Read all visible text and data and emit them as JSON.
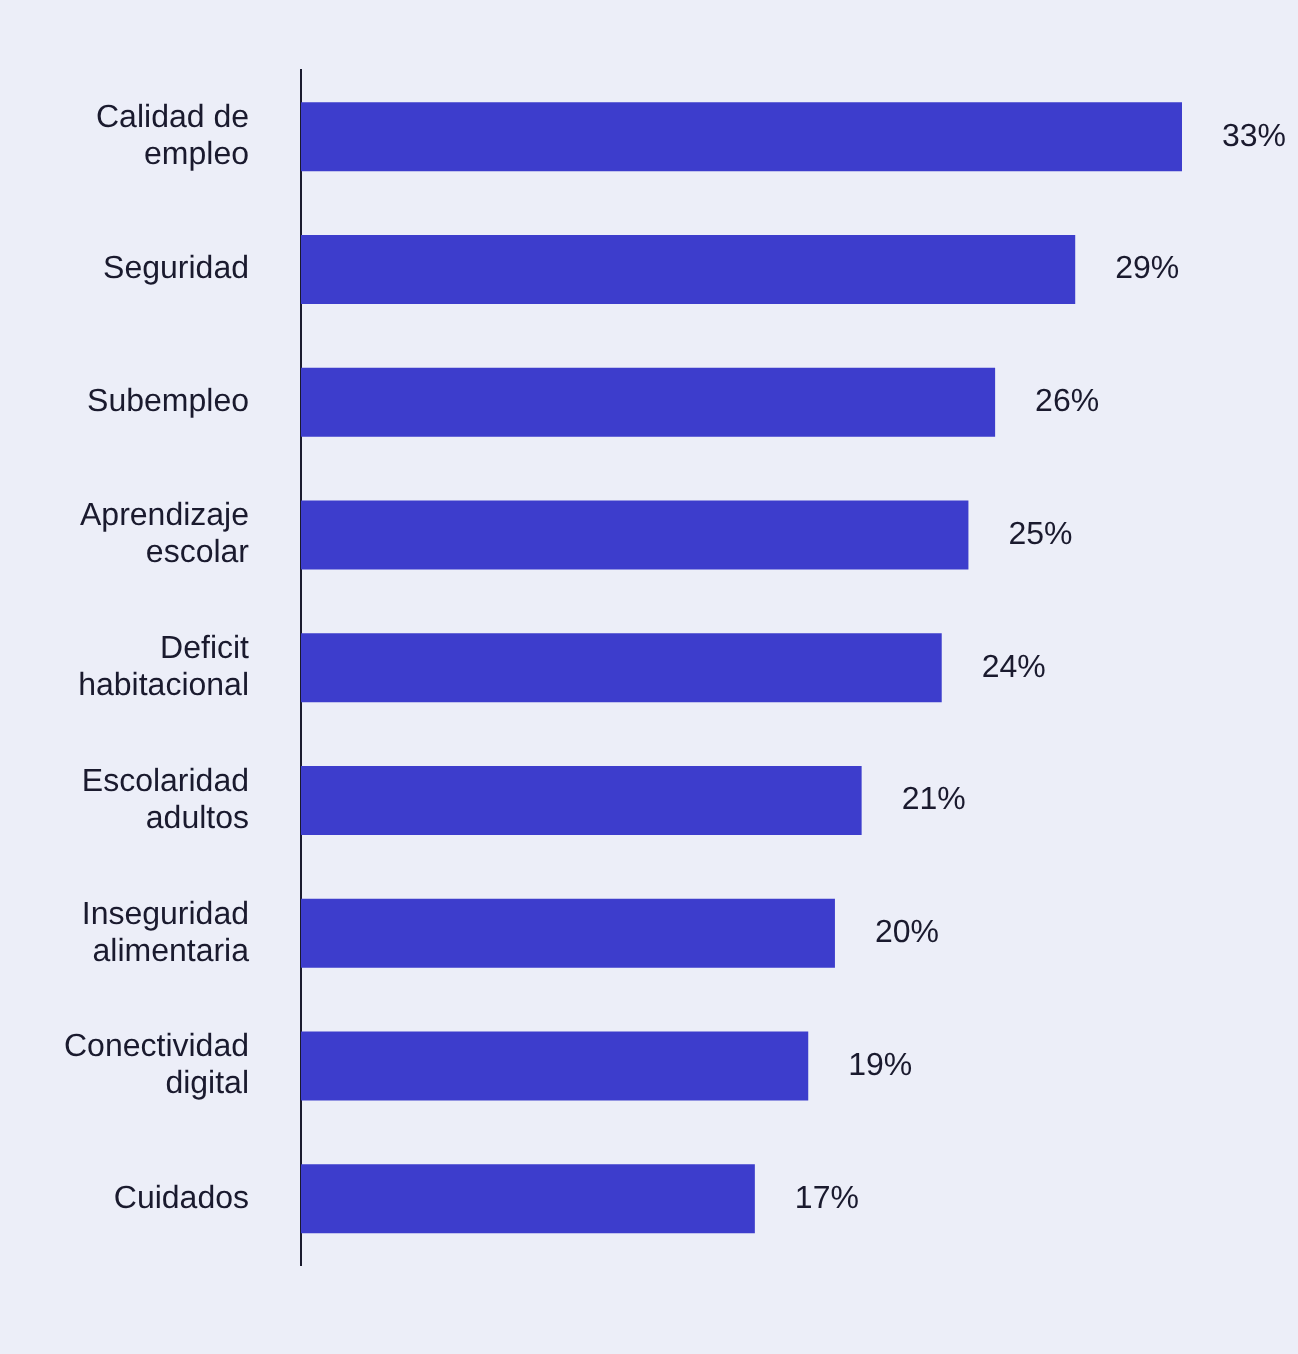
{
  "chart_data": {
    "type": "bar",
    "orientation": "horizontal",
    "categories": [
      "Calidad de empleo",
      "Seguridad",
      "Subempleo",
      "Aprendizaje escolar",
      "Deficit habitacional",
      "Escolaridad adultos",
      "Inseguridad alimentaria",
      "Conectividad digital",
      "Cuidados"
    ],
    "values": [
      33,
      29,
      26,
      25,
      24,
      21,
      20,
      19,
      17
    ],
    "value_labels": [
      "33%",
      "29%",
      "26%",
      "25%",
      "24%",
      "21%",
      "20%",
      "19%",
      "17%"
    ],
    "color": "#3d3dcc",
    "grid": false
  }
}
